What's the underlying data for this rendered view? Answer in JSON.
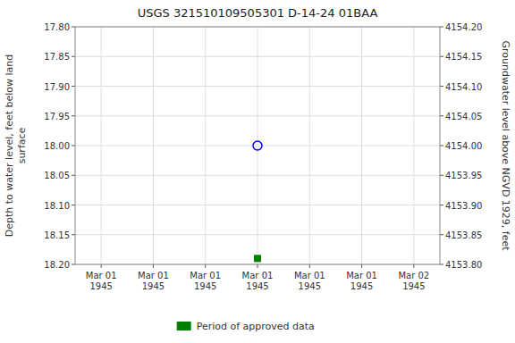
{
  "chart_data": {
    "type": "scatter",
    "title": "USGS 321510109505301 D-14-24 01BAA",
    "ylabel": "Depth to water level, feet below land\nsurface",
    "y2label": "Groundwater level above NGVD 1929, feet",
    "categories": [
      "Mar 01\n1945",
      "Mar 01\n1945",
      "Mar 01\n1945",
      "Mar 01\n1945",
      "Mar 01\n1945",
      "Mar 01\n1945",
      "Mar 02\n1945"
    ],
    "ylim": [
      18.2,
      17.8
    ],
    "yticks": [
      {
        "value": 17.8,
        "label": "17.80"
      },
      {
        "value": 17.85,
        "label": "17.85"
      },
      {
        "value": 17.9,
        "label": "17.90"
      },
      {
        "value": 17.95,
        "label": "17.95"
      },
      {
        "value": 18.0,
        "label": "18.00"
      },
      {
        "value": 18.05,
        "label": "18.05"
      },
      {
        "value": 18.1,
        "label": "18.10"
      },
      {
        "value": 18.15,
        "label": "18.15"
      },
      {
        "value": 18.2,
        "label": "18.20"
      }
    ],
    "y2lim": [
      4153.8,
      4154.2
    ],
    "y2ticks": [
      {
        "value": 4154.2,
        "label": "4154.20"
      },
      {
        "value": 4154.15,
        "label": "4154.15"
      },
      {
        "value": 4154.1,
        "label": "4154.10"
      },
      {
        "value": 4154.05,
        "label": "4154.05"
      },
      {
        "value": 4154.0,
        "label": "4154.00"
      },
      {
        "value": 4153.95,
        "label": "4153.95"
      },
      {
        "value": 4153.9,
        "label": "4153.90"
      },
      {
        "value": 4153.85,
        "label": "4153.85"
      },
      {
        "value": 4153.8,
        "label": "4153.80"
      }
    ],
    "grid": true,
    "legend": "bottom",
    "series": [
      {
        "color": "blue",
        "marker": "open-circle",
        "values": [
          null,
          null,
          null,
          18.0,
          null,
          null,
          null
        ]
      },
      {
        "name": "Period of approved data",
        "color": "#008000",
        "marker": "square",
        "values": [
          null,
          null,
          null,
          18.19,
          null,
          null,
          null
        ]
      }
    ]
  }
}
